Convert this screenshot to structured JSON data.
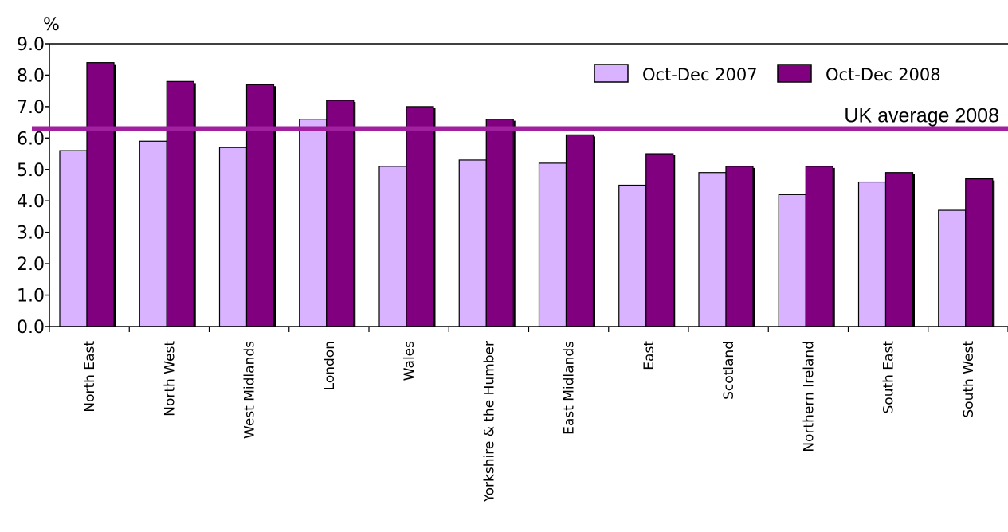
{
  "chart_data": {
    "type": "bar",
    "ylabel": "%",
    "ylim": [
      0,
      9
    ],
    "yticks": [
      "0.0",
      "1.0",
      "2.0",
      "3.0",
      "4.0",
      "5.0",
      "6.0",
      "7.0",
      "8.0",
      "9.0"
    ],
    "grid": false,
    "legend_position": "top-right",
    "categories": [
      "North East",
      "North West",
      "West Midlands",
      "London",
      "Wales",
      "Yorkshire & the Humber",
      "East Midlands",
      "East",
      "Scotland",
      "Northern Ireland",
      "South East",
      "South West"
    ],
    "series": [
      {
        "name": "Oct-Dec 2007",
        "color": "#d9b3ff",
        "values": [
          5.6,
          5.9,
          5.7,
          6.6,
          5.1,
          5.3,
          5.2,
          4.5,
          4.9,
          4.2,
          4.6,
          3.7
        ]
      },
      {
        "name": "Oct-Dec 2008",
        "color": "#800080",
        "values": [
          8.4,
          7.8,
          7.7,
          7.2,
          7.0,
          6.6,
          6.1,
          5.5,
          5.1,
          5.1,
          4.9,
          4.7
        ]
      }
    ],
    "reference_line": {
      "label": "UK average 2008",
      "value": 6.3,
      "color": "#a020a0"
    }
  }
}
